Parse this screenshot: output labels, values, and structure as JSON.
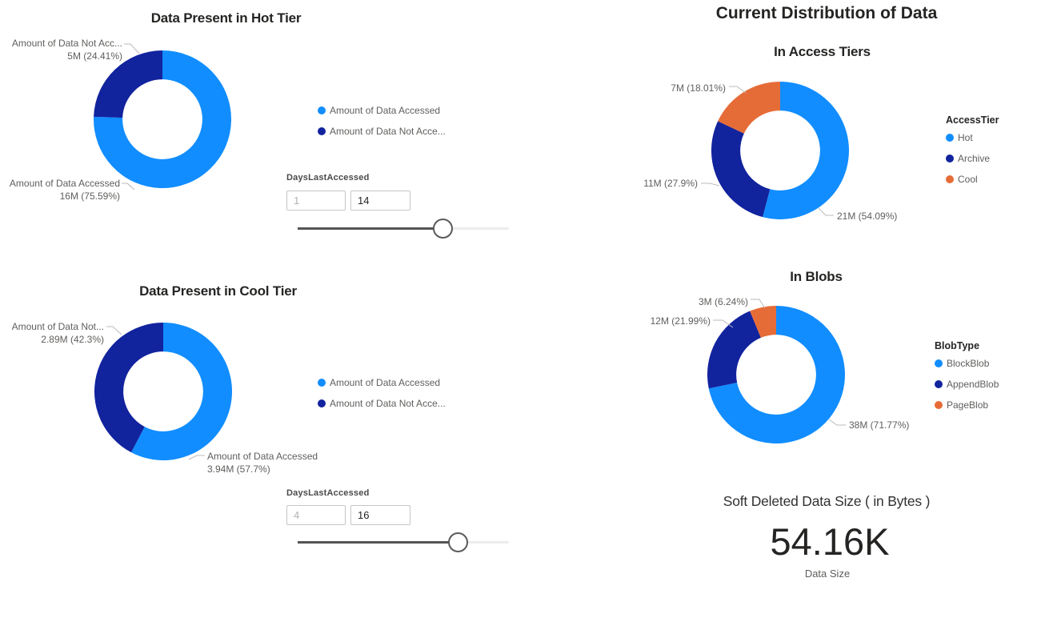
{
  "palette": {
    "accent_blue": "#118DFF",
    "dark_blue": "#12239E",
    "orange": "#E66C37",
    "title_text": "#252423",
    "label_text": "#605E5C",
    "slider_selected": "#545454",
    "slider_rest": "#ECECEC"
  },
  "hot_tier": {
    "title": "Data Present in Hot Tier",
    "callouts": {
      "not_accessed_name": "Amount of Data Not Acc...",
      "not_accessed_value": "5M (24.41%)",
      "accessed_name": "Amount of Data Accessed",
      "accessed_value": "16M (75.59%)"
    },
    "legend": {
      "accessed": "Amount of Data Accessed",
      "not_accessed": "Amount of Data Not Acce..."
    },
    "slicer": {
      "field": "DaysLastAccessed",
      "from": "1",
      "to": "14"
    }
  },
  "cool_tier": {
    "title": "Data Present in Cool Tier",
    "callouts": {
      "not_accessed_name": "Amount of Data Not...",
      "not_accessed_value": "2.89M (42.3%)",
      "accessed_name": "Amount of Data Accessed",
      "accessed_value": "3.94M (57.7%)"
    },
    "legend": {
      "accessed": "Amount of Data Accessed",
      "not_accessed": "Amount of Data Not Acce..."
    },
    "slicer": {
      "field": "DaysLastAccessed",
      "from": "4",
      "to": "16"
    }
  },
  "distribution": {
    "title": "Current Distribution of Data",
    "access_tiers": {
      "subtitle": "In Access Tiers",
      "legend_title": "AccessTier",
      "legend": [
        "Hot",
        "Archive",
        "Cool"
      ],
      "callouts": {
        "cool": "7M (18.01%)",
        "archive": "11M (27.9%)",
        "hot": "21M (54.09%)"
      }
    },
    "blobs": {
      "subtitle": "In Blobs",
      "legend_title": "BlobType",
      "legend": [
        "BlockBlob",
        "AppendBlob",
        "PageBlob"
      ],
      "callouts": {
        "page": "3M (6.24%)",
        "append": "12M (21.99%)",
        "block": "38M (71.77%)"
      }
    },
    "soft_deleted": {
      "title": "Soft Deleted Data Size ( in Bytes )",
      "value": "54.16K",
      "label": "Data Size"
    }
  },
  "chart_data": [
    {
      "id": "donut-hot",
      "type": "pie",
      "subtype": "donut",
      "title": "Data Present in Hot Tier",
      "categories": [
        "Amount of Data Accessed",
        "Amount of Data Not Accessed"
      ],
      "values": [
        16,
        5
      ],
      "value_labels": [
        "16M",
        "5M"
      ],
      "percentages": [
        75.59,
        24.41
      ],
      "unit": "M",
      "colors": [
        "#118DFF",
        "#12239E"
      ],
      "hole": 0.58,
      "legend_position": "right"
    },
    {
      "id": "donut-cool",
      "type": "pie",
      "subtype": "donut",
      "title": "Data Present in Cool Tier",
      "categories": [
        "Amount of Data Accessed",
        "Amount of Data Not Accessed"
      ],
      "values": [
        3.94,
        2.89
      ],
      "value_labels": [
        "3.94M",
        "2.89M"
      ],
      "percentages": [
        57.7,
        42.3
      ],
      "unit": "M",
      "colors": [
        "#118DFF",
        "#12239E"
      ],
      "hole": 0.58,
      "legend_position": "right"
    },
    {
      "id": "donut-access",
      "type": "pie",
      "subtype": "donut",
      "title": "In Access Tiers",
      "legend_title": "AccessTier",
      "categories": [
        "Hot",
        "Archive",
        "Cool"
      ],
      "values": [
        21,
        11,
        7
      ],
      "value_labels": [
        "21M",
        "11M",
        "7M"
      ],
      "percentages": [
        54.09,
        27.9,
        18.01
      ],
      "unit": "M",
      "colors": [
        "#118DFF",
        "#12239E",
        "#E66C37"
      ],
      "hole": 0.58,
      "legend_position": "right"
    },
    {
      "id": "donut-blobs",
      "type": "pie",
      "subtype": "donut",
      "title": "In Blobs",
      "legend_title": "BlobType",
      "categories": [
        "BlockBlob",
        "AppendBlob",
        "PageBlob"
      ],
      "values": [
        38,
        12,
        3
      ],
      "value_labels": [
        "38M",
        "12M",
        "3M"
      ],
      "percentages": [
        71.77,
        21.99,
        6.24
      ],
      "unit": "M",
      "colors": [
        "#118DFF",
        "#12239E",
        "#E66C37"
      ],
      "hole": 0.58,
      "legend_position": "right"
    },
    {
      "id": "card-soft-deleted",
      "type": "card",
      "title": "Soft Deleted Data Size ( in Bytes )",
      "value": "54.16K",
      "label": "Data Size"
    }
  ]
}
